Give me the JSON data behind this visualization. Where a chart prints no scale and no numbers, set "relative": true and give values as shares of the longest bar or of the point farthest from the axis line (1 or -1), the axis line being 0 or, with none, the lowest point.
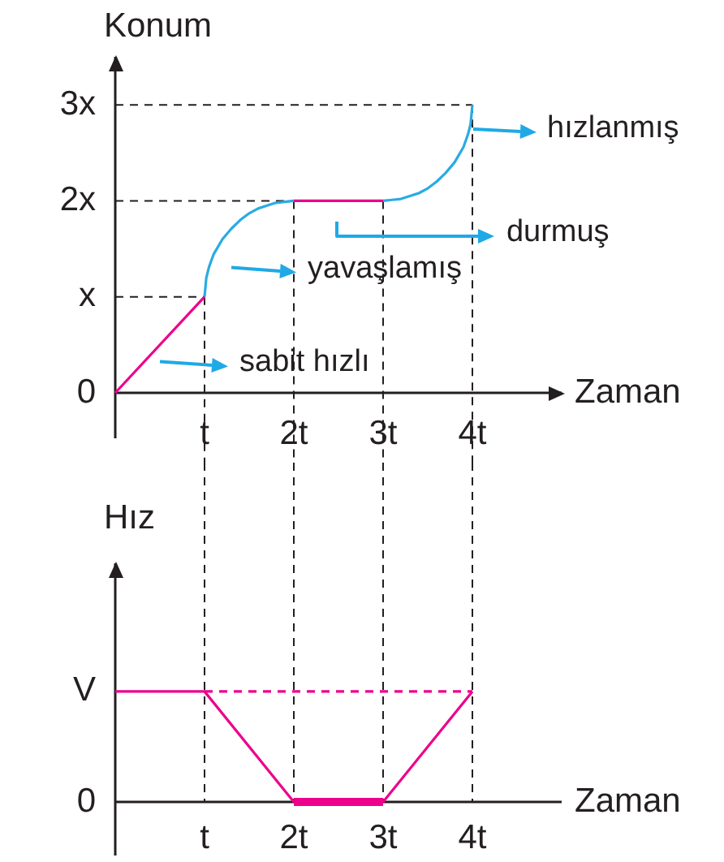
{
  "chart_data": [
    {
      "type": "line",
      "xlabel": "Zaman",
      "ylabel": "Konum",
      "xlim": [
        0,
        5
      ],
      "xticks": [
        {
          "value": 1,
          "label": "t"
        },
        {
          "value": 2,
          "label": "2t"
        },
        {
          "value": 3,
          "label": "3t"
        },
        {
          "value": 4,
          "label": "4t"
        }
      ],
      "ylim": [
        0,
        3.5
      ],
      "yticks": [
        0,
        {
          "value": 1,
          "label": "x"
        },
        {
          "value": 2,
          "label": "2x"
        },
        {
          "value": 3,
          "label": "3x"
        }
      ],
      "series": [
        {
          "color": "#ec008c",
          "x": [
            0,
            1
          ],
          "values": [
            0,
            1
          ]
        },
        {
          "color": "#29abe2",
          "x": [
            1,
            1.02,
            1.05,
            1.1,
            1.2,
            1.3,
            1.4,
            1.5,
            1.6,
            1.7,
            1.8,
            1.9,
            2
          ],
          "values": [
            1,
            1.2,
            1.31,
            1.44,
            1.6,
            1.71,
            1.8,
            1.87,
            1.92,
            1.95,
            1.98,
            1.99,
            2
          ]
        },
        {
          "color": "#ec008c",
          "x": [
            2,
            3
          ],
          "values": [
            2,
            2
          ]
        },
        {
          "color": "#29abe2",
          "x": [
            3,
            3.1,
            3.2,
            3.3,
            3.4,
            3.5,
            3.6,
            3.7,
            3.8,
            3.9,
            3.95,
            3.98,
            4
          ],
          "values": [
            2,
            2.01,
            2.02,
            2.05,
            2.08,
            2.13,
            2.2,
            2.29,
            2.4,
            2.56,
            2.69,
            2.8,
            3
          ]
        }
      ],
      "ref_lines": [
        {
          "axis": "y",
          "value": 1,
          "color": "#231f20",
          "line_style": "dashed"
        },
        {
          "axis": "y",
          "value": 2,
          "color": "#231f20",
          "line_style": "dashed"
        },
        {
          "axis": "y",
          "value": 3,
          "color": "#231f20",
          "line_style": "dashed"
        },
        {
          "axis": "x",
          "value": 1,
          "color": "#231f20",
          "line_style": "dashed"
        },
        {
          "axis": "x",
          "value": 2,
          "color": "#231f20",
          "line_style": "dashed"
        },
        {
          "axis": "x",
          "value": 3,
          "color": "#231f20",
          "line_style": "dashed"
        },
        {
          "axis": "x",
          "value": 4,
          "color": "#231f20",
          "line_style": "dashed"
        }
      ],
      "annotations": [
        {
          "text": "sabit hızlı",
          "x": 0.5,
          "y": 0.5
        },
        {
          "text": "yavaşlamış",
          "x": 1.3,
          "y": 1.71
        },
        "durmuş",
        {
          "text": "hızlanmış",
          "x": 4,
          "y": 2.75
        }
      ],
      "grid": false,
      "legend": false,
      "marker": "none"
    },
    {
      "type": "line",
      "xlabel": "Zaman",
      "ylabel": "Hız",
      "relative": true,
      "xlim": [
        0,
        5
      ],
      "xticks": [
        {
          "value": 1,
          "label": "t"
        },
        {
          "value": 2,
          "label": "2t"
        },
        {
          "value": 3,
          "label": "3t"
        },
        {
          "value": 4,
          "label": "4t"
        }
      ],
      "series": [
        {
          "color": "#ec008c",
          "x": [
            0,
            1,
            2
          ],
          "values": [
            1,
            1,
            0
          ]
        },
        {
          "color": "#ec008c",
          "x": [
            2,
            3
          ],
          "values": [
            0,
            0
          ]
        },
        {
          "color": "#ec008c",
          "x": [
            3,
            4
          ],
          "values": [
            0,
            1
          ]
        },
        {
          "color": "#ec008c",
          "x": [
            1,
            4
          ],
          "values": [
            1,
            1
          ],
          "line_style": "dashed"
        }
      ],
      "ref_lines": [
        {
          "axis": "x",
          "value": 1,
          "color": "#231f20",
          "line_style": "dashed"
        },
        {
          "axis": "x",
          "value": 2,
          "color": "#231f20",
          "line_style": "dashed"
        },
        {
          "axis": "x",
          "value": 3,
          "color": "#231f20",
          "line_style": "dashed"
        },
        {
          "axis": "x",
          "value": 4,
          "color": "#231f20",
          "line_style": "dashed"
        }
      ],
      "annotations": [
        {
          "text": "V",
          "x": 0,
          "y": 1
        },
        "0"
      ],
      "grid": false,
      "legend": false,
      "marker": "none"
    }
  ]
}
